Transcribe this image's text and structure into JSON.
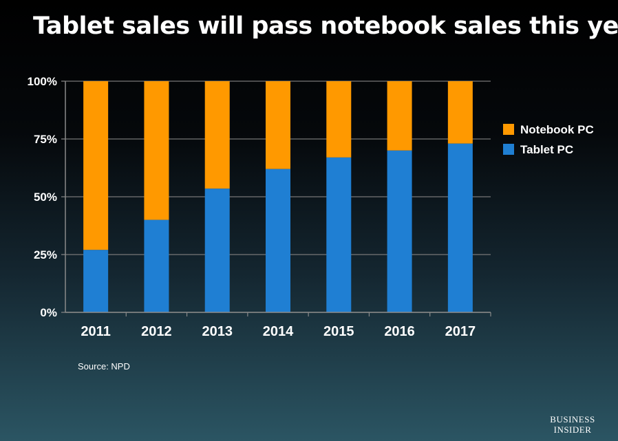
{
  "title": "Tablet sales will pass notebook sales this year",
  "source": "Source: NPD",
  "brand": {
    "line1": "Business",
    "line2": "Insider"
  },
  "colors": {
    "notebook": "#FF9900",
    "tablet": "#1F7FD3",
    "axis": "#8a8a8a",
    "grid": "#777777"
  },
  "chart_data": {
    "type": "bar",
    "stacked": true,
    "categories": [
      "2011",
      "2012",
      "2013",
      "2014",
      "2015",
      "2016",
      "2017"
    ],
    "series": [
      {
        "name": "Tablet PC",
        "values": [
          27,
          40,
          53.5,
          62,
          67,
          70,
          73
        ]
      },
      {
        "name": "Notebook PC",
        "values": [
          73,
          60,
          46.5,
          38,
          33,
          30,
          27
        ]
      }
    ],
    "yticks": [
      "0%",
      "25%",
      "50%",
      "75%",
      "100%"
    ],
    "ylim": [
      0,
      100
    ],
    "grid": true,
    "legend": {
      "position": "right",
      "entries": [
        "Notebook PC",
        "Tablet PC"
      ]
    }
  }
}
